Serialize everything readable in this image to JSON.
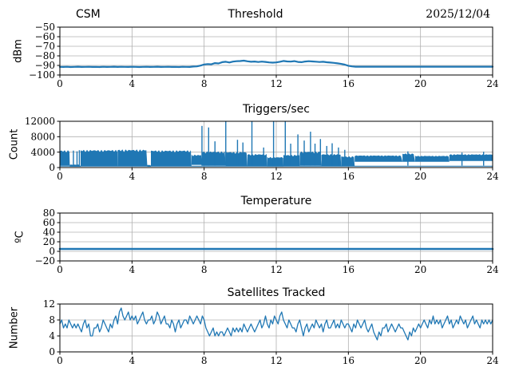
{
  "header": {
    "left": "CSM",
    "center": "Threshold",
    "right": "2025/12/04"
  },
  "colors": {
    "line": "#1f77b4",
    "grid": "#b0b0b0",
    "spine": "#000000",
    "text": "#000000",
    "background": "#ffffff"
  },
  "xaxis": {
    "xlim": [
      0,
      24
    ],
    "tick_values": [
      0,
      4,
      8,
      12,
      16,
      20,
      24
    ],
    "tick_labels": [
      "0",
      "4",
      "8",
      "12",
      "16",
      "20",
      "24"
    ]
  },
  "chart_data": [
    {
      "id": "threshold",
      "type": "line",
      "title": "Threshold",
      "ylabel": "dBm",
      "ylim": [
        -100,
        -50
      ],
      "ytick_values": [
        -50,
        -60,
        -70,
        -80,
        -90,
        -100
      ],
      "ytick_labels": [
        "−50",
        "−60",
        "−70",
        "−80",
        "−90",
        "−100"
      ],
      "series": {
        "x_start": 0,
        "x_step": 0.2,
        "stroke_width": 2.2,
        "values": [
          -91.5,
          -91.6,
          -91.4,
          -91.7,
          -91.5,
          -91.3,
          -91.6,
          -91.5,
          -91.4,
          -91.6,
          -91.5,
          -91.7,
          -91.4,
          -91.6,
          -91.5,
          -91.3,
          -91.6,
          -91.4,
          -91.5,
          -91.6,
          -91.4,
          -91.5,
          -91.7,
          -91.5,
          -91.4,
          -91.6,
          -91.5,
          -91.3,
          -91.6,
          -91.5,
          -91.4,
          -91.6,
          -91.5,
          -91.7,
          -91.4,
          -91.5,
          -91.6,
          -91.2,
          -91.0,
          -90.2,
          -89.0,
          -88.6,
          -88.8,
          -87.6,
          -87.9,
          -86.6,
          -86.2,
          -86.9,
          -86.0,
          -85.6,
          -85.4,
          -85.0,
          -85.7,
          -86.2,
          -85.9,
          -86.4,
          -86.0,
          -86.3,
          -86.8,
          -87.1,
          -86.8,
          -86.2,
          -85.3,
          -85.8,
          -86.0,
          -85.5,
          -86.3,
          -86.6,
          -85.9,
          -85.6,
          -85.8,
          -86.1,
          -86.4,
          -86.2,
          -86.7,
          -87.0,
          -87.3,
          -87.8,
          -88.4,
          -89.2,
          -90.3,
          -91.0,
          -91.3,
          -91.3,
          -91.3,
          -91.3,
          -91.3,
          -91.3,
          -91.3,
          -91.3,
          -91.3,
          -91.3,
          -91.3,
          -91.3,
          -91.3,
          -91.3,
          -91.3,
          -91.3,
          -91.3,
          -91.3,
          -91.3,
          -91.3,
          -91.3,
          -91.3,
          -91.3,
          -91.3,
          -91.3,
          -91.3,
          -91.3,
          -91.3,
          -91.3,
          -91.3,
          -91.3,
          -91.3,
          -91.3,
          -91.3,
          -91.3,
          -91.3,
          -91.3,
          -91.3,
          -91.3
        ]
      }
    },
    {
      "id": "triggers",
      "type": "noise_band",
      "title": "Triggers/sec",
      "ylabel": "Count",
      "ylim": [
        0,
        12000
      ],
      "ytick_values": [
        0,
        4000,
        8000,
        12000
      ],
      "ytick_labels": [
        "0",
        "4000",
        "8000",
        "12000"
      ],
      "series": {
        "baseline": 350,
        "segments": [
          [
            0.0,
            0.55,
            500,
            4600
          ],
          [
            0.55,
            1.15,
            200,
            800
          ],
          [
            1.15,
            3.2,
            400,
            4700
          ],
          [
            3.2,
            4.85,
            400,
            4800
          ],
          [
            4.85,
            5.05,
            200,
            700
          ],
          [
            5.05,
            7.3,
            400,
            4600
          ],
          [
            7.3,
            7.9,
            700,
            3400
          ],
          [
            7.9,
            9.2,
            500,
            4300
          ],
          [
            9.2,
            10.4,
            400,
            4200
          ],
          [
            10.4,
            11.5,
            400,
            3600
          ],
          [
            11.5,
            12.4,
            300,
            2800
          ],
          [
            12.4,
            13.3,
            400,
            3400
          ],
          [
            13.3,
            14.5,
            500,
            4300
          ],
          [
            14.5,
            15.6,
            400,
            3600
          ],
          [
            15.6,
            16.35,
            400,
            3000
          ],
          [
            16.35,
            19.0,
            1500,
            3200
          ],
          [
            19.0,
            19.7,
            1500,
            3700
          ],
          [
            19.7,
            21.6,
            1500,
            3100
          ],
          [
            21.6,
            24.0,
            1700,
            3500
          ]
        ],
        "spikes": [
          [
            0.75,
            4400
          ],
          [
            0.95,
            4200
          ],
          [
            1.08,
            4500
          ],
          [
            7.88,
            10800
          ],
          [
            8.25,
            10400
          ],
          [
            8.6,
            6800
          ],
          [
            9.2,
            12000
          ],
          [
            9.85,
            7200
          ],
          [
            10.15,
            6500
          ],
          [
            10.65,
            12000
          ],
          [
            11.3,
            5200
          ],
          [
            11.85,
            12000
          ],
          [
            12.5,
            12000
          ],
          [
            12.8,
            6200
          ],
          [
            13.2,
            8600
          ],
          [
            13.55,
            7000
          ],
          [
            13.9,
            9300
          ],
          [
            14.15,
            6200
          ],
          [
            14.45,
            7400
          ],
          [
            14.8,
            5600
          ],
          [
            15.1,
            6300
          ],
          [
            15.45,
            5200
          ],
          [
            15.8,
            4600
          ],
          [
            19.3,
            4200
          ],
          [
            22.3,
            3900
          ],
          [
            23.5,
            4100
          ]
        ]
      }
    },
    {
      "id": "temperature",
      "type": "line",
      "title": "Temperature",
      "ylabel": "ºC",
      "ylim": [
        -20,
        80
      ],
      "ytick_values": [
        -20,
        0,
        20,
        40,
        60,
        80
      ],
      "ytick_labels": [
        "−20",
        "0",
        "20",
        "40",
        "60",
        "80"
      ],
      "series": {
        "x_start": 0,
        "x_step": 24,
        "stroke_width": 2.6,
        "values": [
          5,
          5
        ]
      }
    },
    {
      "id": "satellites",
      "type": "line",
      "title": "Satellites Tracked",
      "ylabel": "Number",
      "ylim": [
        0,
        12
      ],
      "ytick_values": [
        0,
        4,
        8,
        12
      ],
      "ytick_labels": [
        "0",
        "4",
        "8",
        "12"
      ],
      "series": {
        "x_start": 0,
        "x_step": 0.1,
        "stroke_width": 1.3,
        "values": [
          7,
          8,
          6,
          7,
          6,
          8,
          7,
          6,
          7,
          6,
          7,
          6,
          5,
          7,
          8,
          6,
          7,
          4,
          4,
          6,
          6,
          7,
          5,
          6,
          8,
          7,
          6,
          5,
          7,
          6,
          8,
          9,
          7,
          10,
          11,
          9,
          8,
          9,
          10,
          8,
          9,
          8,
          9,
          7,
          8,
          9,
          10,
          8,
          7,
          8,
          8,
          9,
          7,
          8,
          10,
          9,
          7,
          8,
          9,
          7,
          7,
          6,
          8,
          7,
          5,
          7,
          8,
          6,
          7,
          8,
          8,
          7,
          9,
          8,
          7,
          8,
          9,
          8,
          7,
          9,
          8,
          6,
          5,
          4,
          5,
          6,
          4,
          5,
          4,
          5,
          5,
          4,
          5,
          6,
          5,
          4,
          6,
          5,
          6,
          5,
          6,
          5,
          7,
          6,
          5,
          6,
          7,
          6,
          5,
          6,
          7,
          8,
          6,
          7,
          9,
          7,
          6,
          8,
          7,
          9,
          8,
          7,
          9,
          10,
          8,
          7,
          6,
          8,
          7,
          6,
          6,
          5,
          7,
          8,
          6,
          4,
          6,
          7,
          5,
          6,
          7,
          6,
          8,
          7,
          6,
          7,
          5,
          7,
          8,
          6,
          6,
          7,
          8,
          6,
          7,
          6,
          8,
          7,
          6,
          7,
          7,
          6,
          5,
          7,
          6,
          8,
          7,
          6,
          7,
          8,
          6,
          5,
          6,
          7,
          5,
          4,
          3,
          5,
          4,
          6,
          6,
          7,
          5,
          6,
          7,
          6,
          5,
          6,
          7,
          6,
          6,
          5,
          4,
          3,
          5,
          4,
          6,
          5,
          6,
          7,
          6,
          7,
          8,
          7,
          6,
          8,
          7,
          9,
          7,
          8,
          7,
          8,
          6,
          7,
          8,
          9,
          7,
          8,
          6,
          7,
          8,
          7,
          9,
          8,
          7,
          8,
          6,
          7,
          8,
          9,
          7,
          8,
          7,
          6,
          8,
          7,
          8,
          7,
          8,
          7,
          8
        ]
      }
    }
  ]
}
